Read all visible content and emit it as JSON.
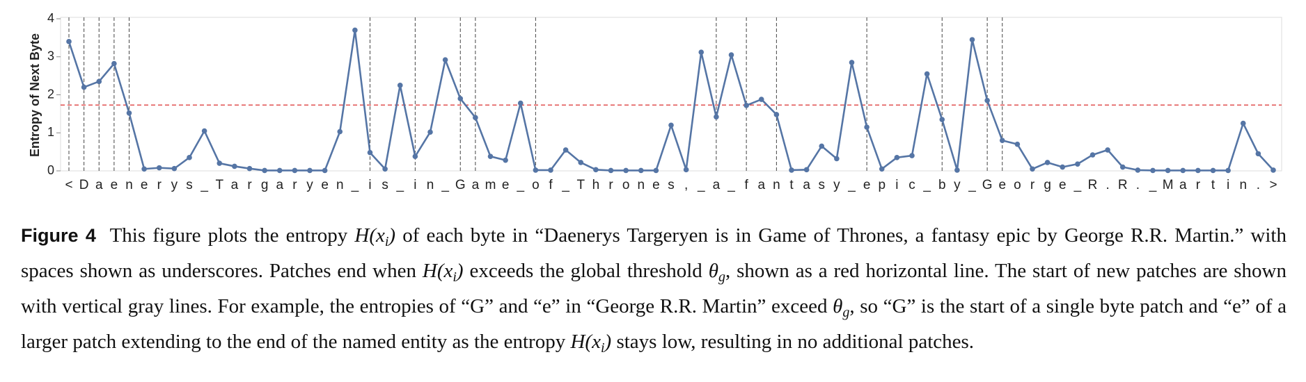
{
  "chart_data": {
    "type": "line",
    "ylabel": "Entropy of Next Byte",
    "categories": [
      "<",
      "D",
      "a",
      "e",
      "n",
      "e",
      "r",
      "y",
      "s",
      "_",
      "T",
      "a",
      "r",
      "g",
      "a",
      "r",
      "y",
      "e",
      "n",
      "_",
      "i",
      "s",
      "_",
      "i",
      "n",
      "_",
      "G",
      "a",
      "m",
      "e",
      "_",
      "o",
      "f",
      "_",
      "T",
      "h",
      "r",
      "o",
      "n",
      "e",
      "s",
      ",",
      "_",
      "a",
      "_",
      "f",
      "a",
      "n",
      "t",
      "a",
      "s",
      "y",
      "_",
      "e",
      "p",
      "i",
      "c",
      "_",
      "b",
      "y",
      "_",
      "G",
      "e",
      "o",
      "r",
      "g",
      "e",
      "_",
      "R",
      ".",
      "R",
      ".",
      "_",
      "M",
      "a",
      "r",
      "t",
      "i",
      "n",
      ".",
      ">"
    ],
    "values": [
      3.4,
      2.2,
      2.35,
      2.82,
      1.52,
      0.05,
      0.08,
      0.06,
      0.35,
      1.05,
      0.2,
      0.12,
      0.06,
      0.01,
      0.01,
      0.01,
      0.01,
      0.01,
      1.03,
      3.7,
      0.48,
      0.05,
      2.25,
      0.38,
      1.02,
      2.92,
      1.9,
      1.4,
      0.38,
      0.28,
      1.78,
      0.02,
      0.02,
      0.55,
      0.22,
      0.03,
      0.01,
      0.01,
      0.01,
      0.01,
      1.2,
      0.03,
      3.12,
      1.42,
      3.05,
      1.72,
      1.88,
      1.48,
      0.02,
      0.03,
      0.65,
      0.32,
      2.85,
      1.15,
      0.05,
      0.35,
      0.4,
      2.55,
      1.35,
      0.02,
      3.45,
      1.85,
      0.8,
      0.7,
      0.05,
      0.22,
      0.1,
      0.18,
      0.42,
      0.55,
      0.1,
      0.02,
      0.01,
      0.01,
      0.01,
      0.01,
      0.01,
      0.01,
      1.25,
      0.45,
      0.02
    ],
    "color": "#5575a5",
    "ylim": [
      0,
      4
    ],
    "yticks": [
      0,
      1,
      2,
      3,
      4
    ],
    "threshold": 1.73,
    "threshold_color": "#e05050",
    "patch_starts": [
      0,
      1,
      2,
      3,
      4,
      20,
      23,
      26,
      27,
      31,
      43,
      45,
      47,
      53,
      58,
      61,
      62
    ]
  },
  "caption": {
    "label": "Figure 4",
    "parts": [
      "This figure plots the entropy ",
      "H(x",
      "i",
      ")",
      " of each byte in “Daenerys Targeryen is in Game of Thrones, a fantasy epic by George R.R. Martin.” with spaces shown as underscores. Patches end when ",
      "H(x",
      "i",
      ")",
      " exceeds the global threshold ",
      "θ",
      "g",
      ", shown as a red horizontal line. The start of new patches are shown with vertical gray lines. For example, the entropies of “G” and “e” in “George R.R. Martin” exceed ",
      "θ",
      "g",
      ", so “G” is the start of a single byte patch and “e” of a larger patch extending to the end of the named entity as the entropy ",
      "H(x",
      "i",
      ")",
      " stays low, resulting in no additional patches."
    ]
  }
}
